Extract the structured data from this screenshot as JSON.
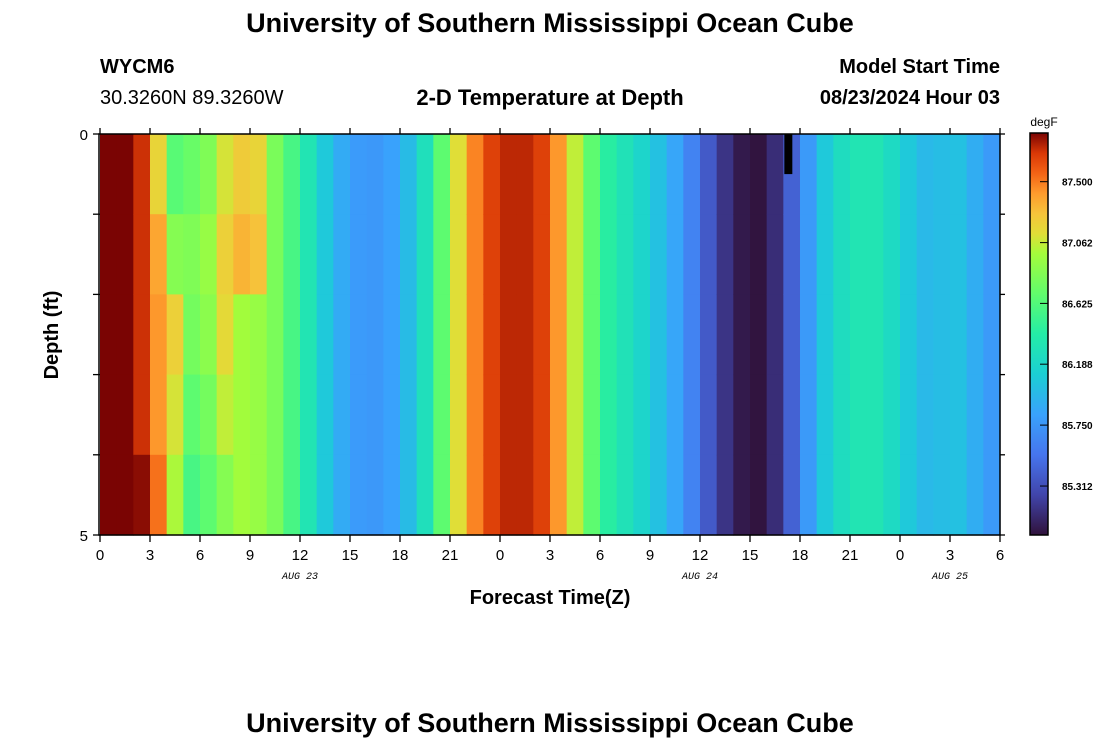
{
  "header": {
    "title": "University of Southern Mississippi Ocean Cube",
    "station_id": "WYCM6",
    "coords": "30.3260N  89.3260W",
    "plot_title": "2-D Temperature at Depth",
    "start_label": "Model Start Time",
    "start_value": "08/23/2024 Hour 03"
  },
  "footer": {
    "title": "University of Southern Mississippi Ocean Cube"
  },
  "chart_data": {
    "type": "heatmap",
    "title": "2-D Temperature at Depth",
    "xlabel": "Forecast Time(Z)",
    "ylabel": "Depth (ft)",
    "x_unit": "hours since 08/23 00Z",
    "xlim": [
      0,
      54
    ],
    "ylim": [
      0,
      5
    ],
    "x_ticks": [
      0,
      3,
      6,
      9,
      12,
      15,
      18,
      21,
      24,
      27,
      30,
      33,
      36,
      39,
      42,
      45,
      48,
      51,
      54
    ],
    "x_tick_labels": [
      "0",
      "3",
      "6",
      "9",
      "12",
      "15",
      "18",
      "21",
      "0",
      "3",
      "6",
      "9",
      "12",
      "15",
      "18",
      "21",
      "0",
      "3",
      "6"
    ],
    "y_tick_labels": [
      "0",
      "5"
    ],
    "date_labels": [
      {
        "text": "AUG 23",
        "x": 12
      },
      {
        "text": "AUG 24",
        "x": 36
      },
      {
        "text": "AUG 25",
        "x": 51
      }
    ],
    "colorbar": {
      "unit": "degF",
      "min": 84.96,
      "max": 87.85,
      "ticks": [
        85.312,
        85.75,
        86.188,
        86.625,
        87.062,
        87.5
      ],
      "tick_labels": [
        "85.312",
        "85.750",
        "86.188",
        "86.625",
        "87.062",
        "87.500"
      ]
    },
    "depth_layers": [
      0,
      1,
      2,
      3,
      4
    ],
    "surface_profile": [
      [
        0,
        87.9
      ],
      [
        2,
        87.85
      ],
      [
        3,
        87.6
      ],
      [
        4,
        87.25
      ],
      [
        4.5,
        86.9
      ],
      [
        5,
        86.5
      ],
      [
        6,
        86.45
      ],
      [
        7,
        86.7
      ],
      [
        8,
        87.0
      ],
      [
        10,
        86.9
      ],
      [
        11,
        86.7
      ],
      [
        12,
        86.45
      ],
      [
        13,
        86.2
      ],
      [
        14,
        85.95
      ],
      [
        15,
        85.82
      ],
      [
        16,
        85.75
      ],
      [
        17,
        85.78
      ],
      [
        18,
        85.88
      ],
      [
        19,
        86.1
      ],
      [
        20,
        86.45
      ],
      [
        21,
        86.9
      ],
      [
        22,
        87.35
      ],
      [
        23,
        87.6
      ],
      [
        24,
        87.75
      ],
      [
        26,
        87.75
      ],
      [
        27,
        87.6
      ],
      [
        28,
        87.25
      ],
      [
        29,
        86.85
      ],
      [
        30,
        86.5
      ],
      [
        31,
        86.35
      ],
      [
        32,
        86.25
      ],
      [
        33,
        86.1
      ],
      [
        34,
        85.95
      ],
      [
        35,
        85.75
      ],
      [
        36,
        85.5
      ],
      [
        37,
        85.25
      ],
      [
        38,
        85.05
      ],
      [
        39,
        84.96
      ],
      [
        40,
        84.98
      ],
      [
        41,
        85.25
      ],
      [
        42,
        85.6
      ],
      [
        43,
        85.95
      ],
      [
        44,
        86.2
      ],
      [
        45,
        86.3
      ],
      [
        46,
        86.35
      ],
      [
        47,
        86.3
      ],
      [
        48,
        86.15
      ],
      [
        49,
        86.0
      ],
      [
        50,
        85.95
      ],
      [
        51,
        86.05
      ],
      [
        52,
        86.0
      ],
      [
        53,
        85.8
      ],
      [
        54,
        85.75
      ]
    ],
    "layer_offsets": [
      [
        [
          3,
          5,
          -0.25
        ],
        [
          5,
          10,
          0.25
        ]
      ],
      [
        [
          3,
          5,
          -0.05
        ],
        [
          5,
          10,
          0.35
        ]
      ],
      [
        [
          4,
          8,
          0.3
        ]
      ],
      [
        [
          4,
          8,
          0.2
        ]
      ],
      [
        [
          2,
          7,
          0.1
        ]
      ]
    ],
    "missing_marker": {
      "x": 41.3,
      "depth_from": 0,
      "depth_to": 0.5
    }
  }
}
